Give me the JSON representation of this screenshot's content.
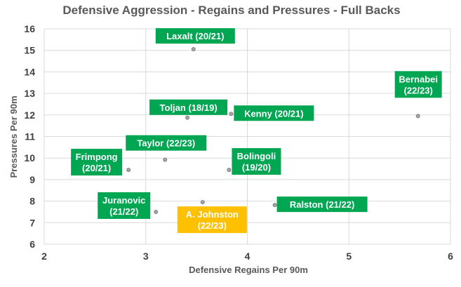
{
  "chart_data": {
    "type": "scatter",
    "title": "Defensive Aggression - Regains and Pressures - Full Backs",
    "xlabel": "Defensive Regains Per 90m",
    "ylabel": "Pressures Per 90m",
    "xlim": [
      2,
      6
    ],
    "ylim": [
      6,
      16
    ],
    "xticks": [
      2,
      3,
      4,
      5,
      6
    ],
    "yticks": [
      6,
      7,
      8,
      9,
      10,
      11,
      12,
      13,
      14,
      15,
      16
    ],
    "grid": true,
    "colors": {
      "label_bg": "#00a651",
      "highlight_bg": "#ffc000",
      "highlight_text": "#007a3d"
    },
    "points": [
      {
        "lines": [
          "Laxalt (20/21)"
        ],
        "x": 3.47,
        "y": 15.05
      },
      {
        "lines": [
          "Bernabei",
          "(22/23)"
        ],
        "x": 5.68,
        "y": 11.95
      },
      {
        "lines": [
          "Toljan (18/19)"
        ],
        "x": 3.41,
        "y": 11.87
      },
      {
        "lines": [
          "Kenny (20/21)"
        ],
        "x": 3.84,
        "y": 12.05
      },
      {
        "lines": [
          "Taylor (22/23)"
        ],
        "x": 3.19,
        "y": 9.92
      },
      {
        "lines": [
          "Frimpong",
          "(20/21)"
        ],
        "x": 2.83,
        "y": 9.45
      },
      {
        "lines": [
          "Bolingoli",
          "(19/20)"
        ],
        "x": 3.82,
        "y": 9.45
      },
      {
        "lines": [
          "Juranovic",
          "(21/22)"
        ],
        "x": 3.1,
        "y": 7.5
      },
      {
        "lines": [
          "A. Johnston",
          "(22/23)"
        ],
        "x": 3.56,
        "y": 7.95,
        "highlight": true
      },
      {
        "lines": [
          "Ralston (21/22)"
        ],
        "x": 4.27,
        "y": 7.82
      }
    ]
  }
}
